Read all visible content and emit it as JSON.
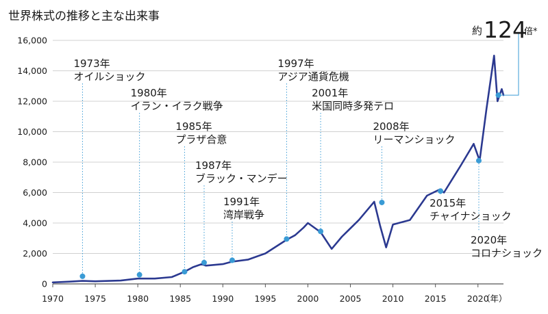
{
  "chart_data": {
    "type": "line",
    "title": "世界株式の推移と主な出来事",
    "x_unit_label": "（年）",
    "xlim": [
      1970,
      2023
    ],
    "ylim": [
      0,
      16000
    ],
    "x_ticks": [
      1970,
      1975,
      1980,
      1985,
      1990,
      1995,
      2000,
      2005,
      2010,
      2015,
      2020
    ],
    "y_ticks": [
      "0",
      "2,000",
      "4,000",
      "6,000",
      "8,000",
      "10,000",
      "12,000",
      "14,000",
      "16,000"
    ],
    "y_tick_values": [
      0,
      2000,
      4000,
      6000,
      8000,
      10000,
      12000,
      14000,
      16000
    ],
    "grid": true,
    "line_color": "#2b3990",
    "marker_color": "#3a9bd5",
    "series": [
      {
        "x": [
          1970,
          1972,
          1973.5,
          1975,
          1978,
          1980,
          1982,
          1984,
          1985.5,
          1986.5,
          1987.5,
          1988,
          1990,
          1991,
          1993,
          1995,
          1997.5,
          1998.5,
          1999.5,
          2000,
          2001.5,
          2002.8,
          2004,
          2006,
          2007.8,
          2008.5,
          2009.2,
          2010,
          2012,
          2014,
          2015.5,
          2016,
          2018,
          2019.5,
          2020.2,
          2021,
          2021.9,
          2022.3,
          2022.8,
          2023
        ],
        "y": [
          100,
          150,
          200,
          170,
          220,
          350,
          350,
          450,
          800,
          1100,
          1300,
          1200,
          1300,
          1450,
          1600,
          2000,
          2900,
          3200,
          3700,
          4000,
          3400,
          2300,
          3100,
          4200,
          5400,
          3800,
          2400,
          3900,
          4200,
          5800,
          6200,
          6000,
          7800,
          9200,
          8100,
          11500,
          15000,
          12000,
          12800,
          12400
        ]
      }
    ],
    "events": [
      {
        "year": "1973年",
        "label": "オイルショック",
        "x": 1973.5,
        "y": 500
      },
      {
        "year": "1980年",
        "label": "イラン・イラク戦争",
        "x": 1980.2,
        "y": 600
      },
      {
        "year": "1985年",
        "label": "プラザ合意",
        "x": 1985.5,
        "y": 800
      },
      {
        "year": "1987年",
        "label": "ブラック・マンデー",
        "x": 1987.8,
        "y": 1400
      },
      {
        "year": "1991年",
        "label": "湾岸戦争",
        "x": 1991.1,
        "y": 1550
      },
      {
        "year": "1997年",
        "label": "アジア通貨危機",
        "x": 1997.5,
        "y": 2950
      },
      {
        "year": "2001年",
        "label": "米国同時多発テロ",
        "x": 2001.5,
        "y": 3450
      },
      {
        "year": "2008年",
        "label": "リーマンショック",
        "x": 2008.7,
        "y": 5350
      },
      {
        "year": "2015年",
        "label": "チャイナショック",
        "x": 2015.6,
        "y": 6100
      },
      {
        "year": "2020年",
        "label": "コロナショック",
        "x": 2020.1,
        "y": 8100
      }
    ],
    "callout": {
      "prefix": "約",
      "value": "124",
      "suffix": "倍*",
      "x": 2023.2,
      "y": 12400
    }
  }
}
